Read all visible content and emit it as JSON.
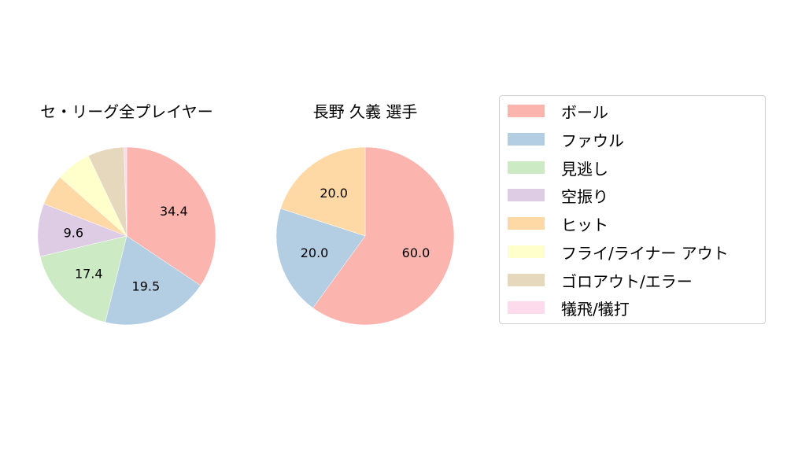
{
  "chart_data": [
    {
      "type": "pie",
      "title": "セ・リーグ全プレイヤー",
      "categories": [
        "ボール",
        "ファウル",
        "見逃し",
        "空振り",
        "ヒット",
        "フライ/ライナー アウト",
        "ゴロアウト/エラー",
        "犠飛/犠打"
      ],
      "values": [
        34.4,
        19.5,
        17.4,
        9.6,
        5.6,
        6.4,
        6.6,
        0.5
      ],
      "labels_shown": [
        "34.4",
        "19.5",
        "17.4",
        "9.6",
        "",
        "",
        "",
        ""
      ],
      "start_angle": 90,
      "direction": "clockwise"
    },
    {
      "type": "pie",
      "title": "長野 久義  選手",
      "categories": [
        "ボール",
        "ファウル",
        "ヒット"
      ],
      "values": [
        60.0,
        20.0,
        20.0
      ],
      "labels_shown": [
        "60.0",
        "20.0",
        "20.0"
      ],
      "start_angle": 90,
      "direction": "clockwise"
    }
  ],
  "titles": {
    "left": "セ・リーグ全プレイヤー",
    "right": "長野 久義  選手"
  },
  "legend": [
    {
      "label": "ボール",
      "color": "#fbb4ae"
    },
    {
      "label": "ファウル",
      "color": "#b3cde3"
    },
    {
      "label": "見逃し",
      "color": "#ccebc5"
    },
    {
      "label": "空振り",
      "color": "#decbe4"
    },
    {
      "label": "ヒット",
      "color": "#fed9a6"
    },
    {
      "label": "フライ/ライナー アウト",
      "color": "#ffffcc"
    },
    {
      "label": "ゴロアウト/エラー",
      "color": "#e5d8bd"
    },
    {
      "label": "犠飛/犠打",
      "color": "#fddaec"
    }
  ]
}
